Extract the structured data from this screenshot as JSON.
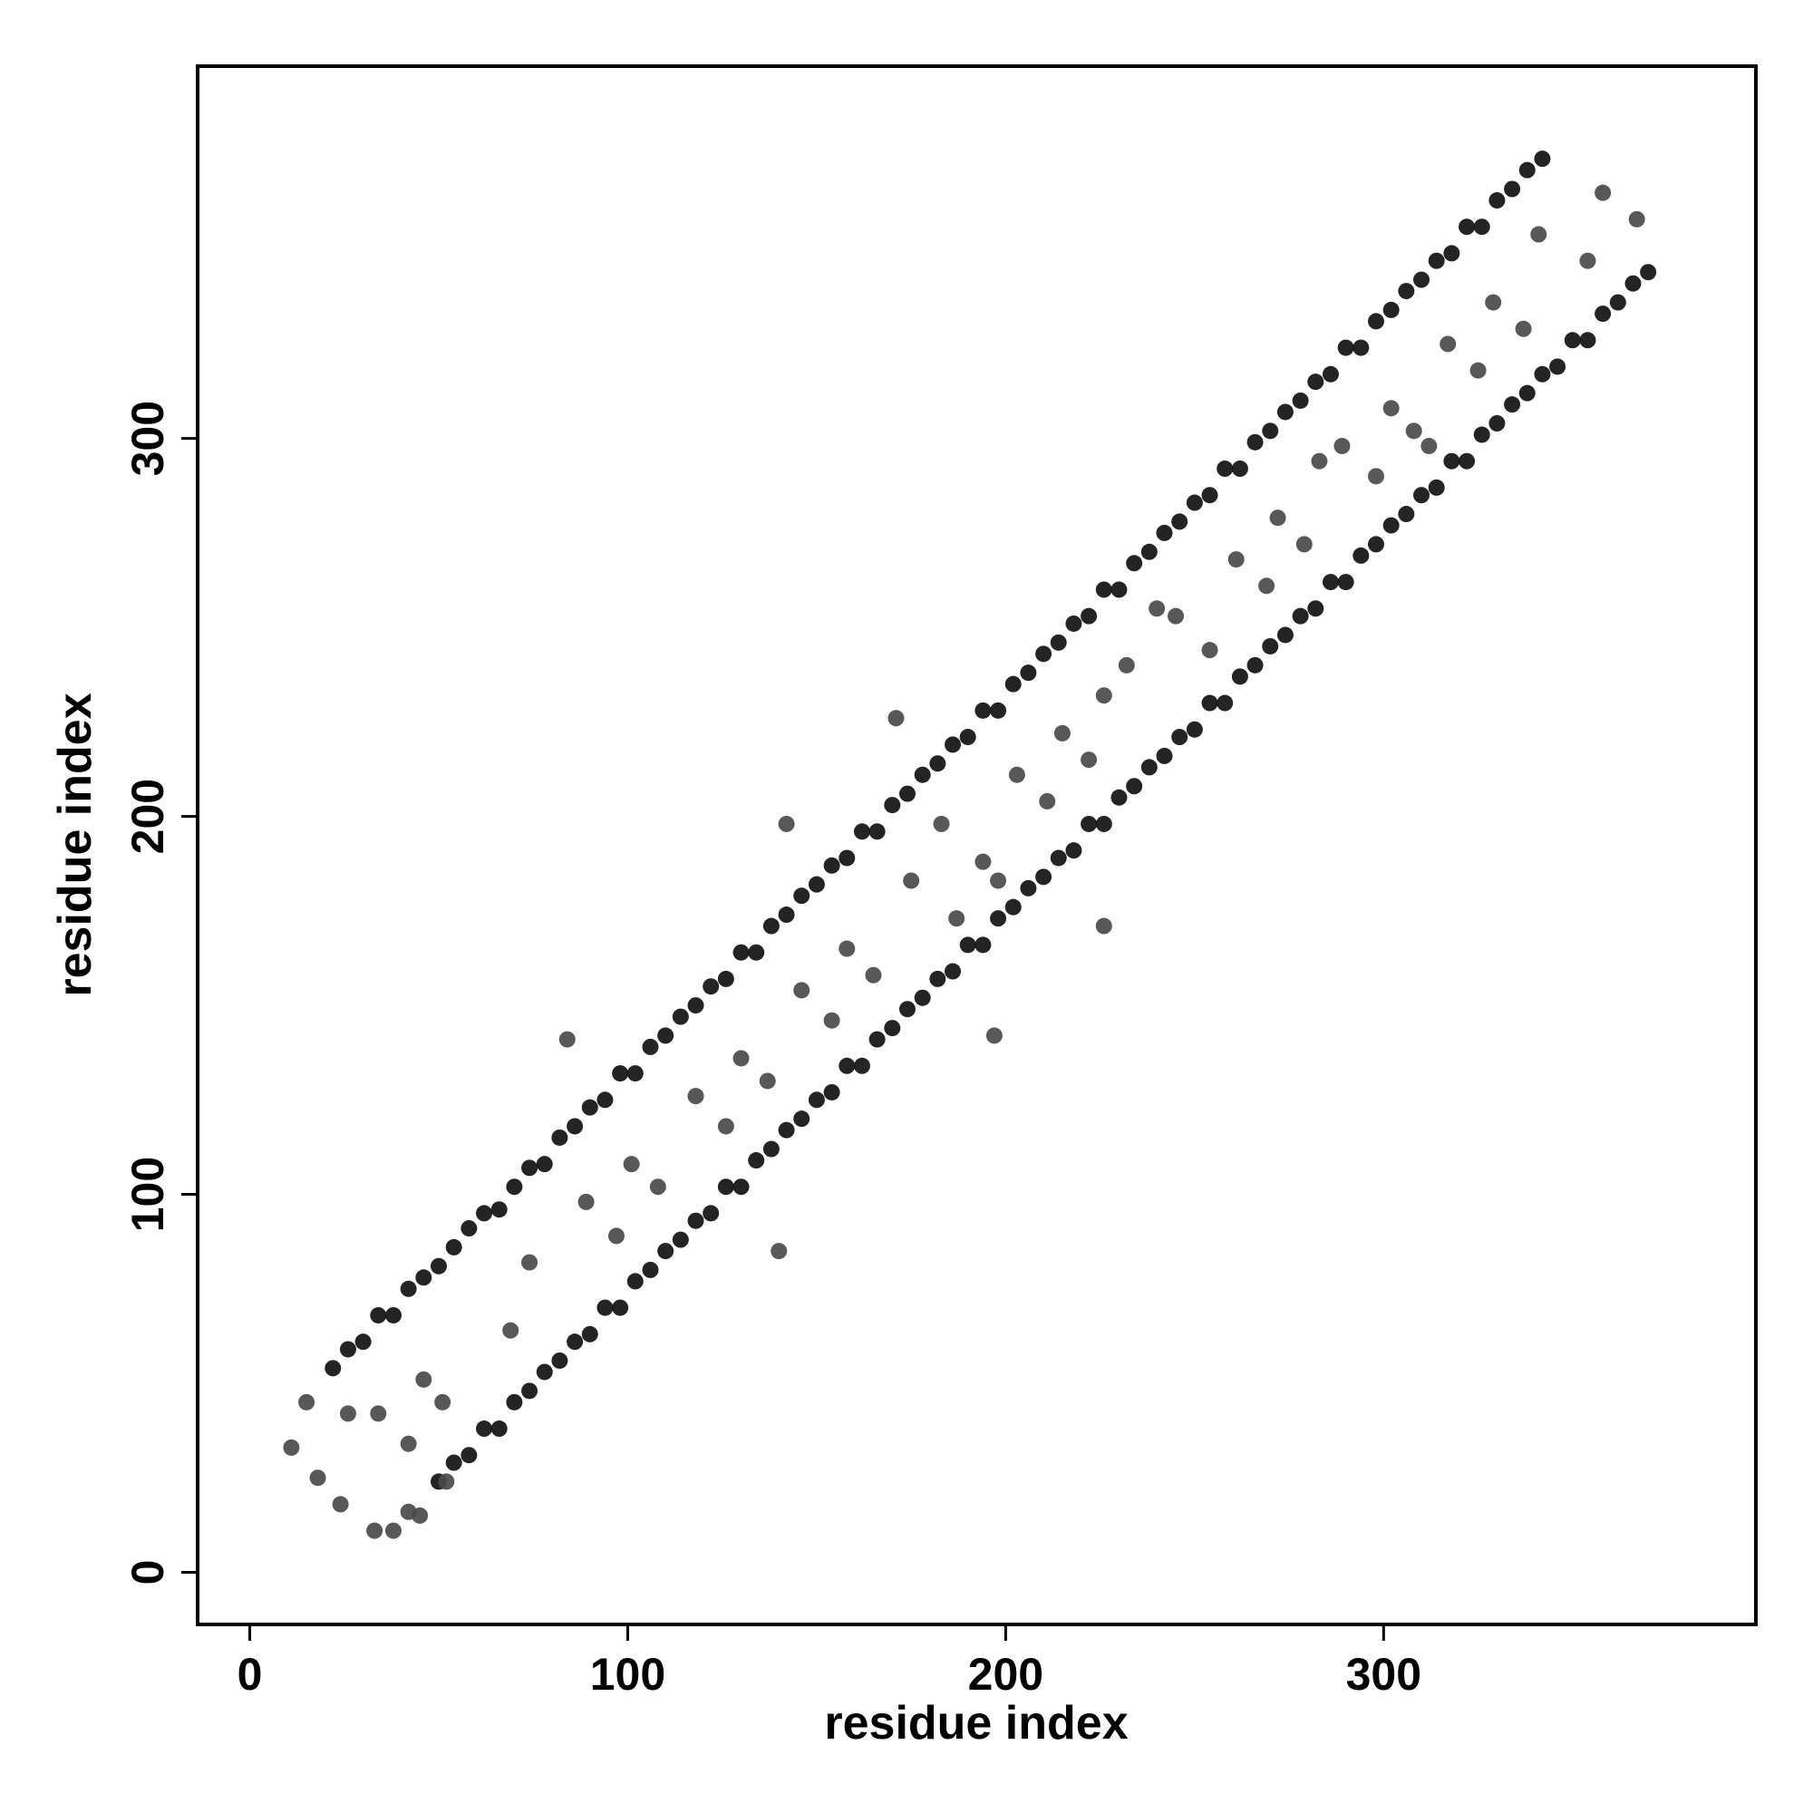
{
  "chart_data": {
    "type": "scatter",
    "x_label": "residue index",
    "y_label": "residue index",
    "xlim": [
      -13.8,
      398.5
    ],
    "ylim": [
      -13.8,
      398.5
    ],
    "xticks": [
      0,
      100,
      200,
      300
    ],
    "yticks": [
      0,
      100,
      200,
      300
    ],
    "series": [
      {
        "color": "#111111",
        "x": [
          22,
          26,
          30,
          34,
          38,
          42,
          46,
          50,
          54,
          58,
          62,
          66,
          70,
          74,
          78,
          82,
          86,
          90,
          94,
          98,
          102,
          106,
          110,
          114,
          118,
          122,
          126,
          130,
          134,
          138,
          142,
          146,
          150,
          154,
          158,
          162,
          166,
          170,
          174,
          178,
          182,
          186,
          190,
          194,
          198,
          202,
          206,
          210,
          214,
          218,
          222,
          226,
          230,
          234,
          238,
          242,
          246,
          250,
          254,
          258,
          262,
          266,
          270,
          274,
          278,
          282,
          286,
          290,
          294,
          298,
          302,
          306,
          310,
          314,
          318,
          322,
          326,
          330,
          334,
          338,
          342
        ],
        "values": [
          54,
          59,
          61,
          68,
          68,
          75,
          78,
          81,
          86,
          91,
          95,
          96,
          102,
          107,
          108,
          115,
          118,
          123,
          125,
          132,
          132,
          139,
          142,
          147,
          150,
          155,
          157,
          164,
          164,
          171,
          174,
          179,
          182,
          187,
          189,
          196,
          196,
          203,
          206,
          211,
          214,
          219,
          221,
          228,
          228,
          235,
          238,
          243,
          246,
          251,
          253,
          260,
          260,
          267,
          270,
          275,
          278,
          283,
          285,
          292,
          292,
          299,
          302,
          307,
          310,
          315,
          317,
          324,
          324,
          331,
          334,
          339,
          342,
          347,
          349,
          356,
          356,
          363,
          366,
          371,
          374
        ]
      },
      {
        "color": "#111111",
        "x": [
          50,
          54,
          58,
          62,
          66,
          70,
          74,
          78,
          82,
          86,
          90,
          94,
          98,
          102,
          106,
          110,
          114,
          118,
          122,
          126,
          130,
          134,
          138,
          142,
          146,
          150,
          154,
          158,
          162,
          166,
          170,
          174,
          178,
          182,
          186,
          190,
          194,
          198,
          202,
          206,
          210,
          214,
          218,
          222,
          226,
          230,
          234,
          238,
          242,
          246,
          250,
          254,
          258,
          262,
          266,
          270,
          274,
          278,
          282,
          286,
          290,
          294,
          298,
          302,
          306,
          310,
          314,
          318,
          322,
          326,
          330,
          334,
          338,
          342,
          346,
          350,
          354,
          358,
          362,
          366,
          370
        ],
        "values": [
          24,
          29,
          31,
          38,
          38,
          45,
          48,
          53,
          56,
          61,
          63,
          70,
          70,
          77,
          80,
          85,
          88,
          93,
          95,
          102,
          102,
          109,
          112,
          117,
          120,
          125,
          127,
          134,
          134,
          141,
          144,
          149,
          152,
          157,
          159,
          166,
          166,
          173,
          176,
          181,
          184,
          189,
          191,
          198,
          198,
          205,
          208,
          213,
          216,
          221,
          223,
          230,
          230,
          237,
          240,
          245,
          248,
          253,
          255,
          262,
          262,
          269,
          272,
          277,
          280,
          285,
          287,
          294,
          294,
          301,
          304,
          309,
          312,
          317,
          319,
          326,
          326,
          333,
          336,
          341,
          344
        ]
      },
      {
        "color": "#4a4a4a",
        "x": [
          26,
          34,
          46,
          42,
          51,
          69,
          74,
          89,
          97,
          101,
          108,
          118,
          126,
          130,
          137,
          146,
          154,
          158,
          165,
          175,
          183,
          187,
          194,
          198,
          203,
          211,
          215,
          222,
          226,
          232,
          240,
          245,
          254,
          261,
          269,
          272,
          279,
          283,
          289,
          298,
          302,
          308,
          312,
          317,
          325,
          329,
          337,
          341,
          354,
          358,
          367,
          84,
          142,
          171,
          197,
          226,
          140,
          11,
          15,
          18,
          24,
          33,
          38,
          42,
          45,
          52
        ],
        "values": [
          42,
          42,
          51,
          34,
          45,
          64,
          82,
          98,
          89,
          108,
          102,
          126,
          118,
          136,
          130,
          154,
          146,
          165,
          158,
          183,
          198,
          173,
          188,
          183,
          211,
          204,
          222,
          215,
          232,
          240,
          255,
          253,
          244,
          268,
          261,
          279,
          272,
          294,
          298,
          290,
          308,
          302,
          298,
          325,
          318,
          336,
          329,
          354,
          347,
          365,
          358,
          141,
          198,
          226,
          142,
          171,
          85,
          33,
          45,
          25,
          18,
          11,
          11,
          16,
          15,
          24
        ]
      }
    ]
  }
}
